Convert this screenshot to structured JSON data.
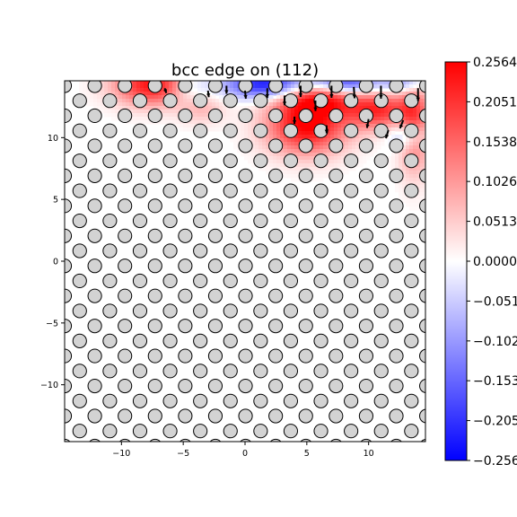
{
  "chart_data": {
    "type": "heatmap",
    "title": "bcc edge on (112)",
    "xlabel": "",
    "ylabel": "",
    "xlim": [
      -14.6,
      14.6
    ],
    "ylim": [
      -14.6,
      14.6
    ],
    "x_ticks": [
      -10,
      -5,
      0,
      5,
      10
    ],
    "y_ticks": [
      -10,
      -5,
      0,
      5,
      10
    ],
    "x_tick_labels": [
      "−10",
      "−5",
      "0",
      "5",
      "10"
    ],
    "y_tick_labels": [
      "−10",
      "−5",
      "0",
      "5",
      "10"
    ],
    "atoms": {
      "row_spacing": 1.215,
      "col_spacing": 2.44,
      "row_offset_shift": 1.22,
      "first_row_y": 14.2,
      "first_col_x": -14.6,
      "marker_color": "#d3d3d3",
      "edge_color": "#000000"
    },
    "field_hotspots": [
      {
        "x": -7.5,
        "y": 14.3,
        "sx": 2.2,
        "sy": 1.2,
        "value": 0.24
      },
      {
        "x": -4.5,
        "y": 14.0,
        "sx": 1.2,
        "sy": 0.9,
        "value": -0.08
      },
      {
        "x": -3.5,
        "y": 12.4,
        "sx": 1.3,
        "sy": 0.9,
        "value": 0.07
      },
      {
        "x": 2.0,
        "y": 14.3,
        "sx": 2.5,
        "sy": 0.8,
        "value": -0.25
      },
      {
        "x": 5.0,
        "y": 10.9,
        "sx": 2.3,
        "sy": 1.6,
        "value": 0.25
      },
      {
        "x": 6.0,
        "y": 13.4,
        "sx": 2.3,
        "sy": 1.1,
        "value": 0.22
      },
      {
        "x": 8.0,
        "y": 14.4,
        "sx": 2.0,
        "sy": 0.7,
        "value": -0.24
      },
      {
        "x": 10.8,
        "y": 12.2,
        "sx": 1.8,
        "sy": 1.1,
        "value": 0.2
      },
      {
        "x": 13.7,
        "y": 11.0,
        "sx": 0.9,
        "sy": 2.6,
        "value": 0.18
      },
      {
        "x": 13.2,
        "y": 10.2,
        "sx": 1.0,
        "sy": 0.8,
        "value": -0.14
      },
      {
        "x": 13.0,
        "y": 14.4,
        "sx": 1.2,
        "sy": 0.6,
        "value": -0.12
      }
    ],
    "quiver": [
      {
        "x": -1.5,
        "y": 14.2,
        "u": 0.0,
        "v": -1.0
      },
      {
        "x": 0.0,
        "y": 13.8,
        "u": 0.1,
        "v": -1.0
      },
      {
        "x": 1.8,
        "y": 14.0,
        "u": 0.0,
        "v": -1.2
      },
      {
        "x": 3.2,
        "y": 13.4,
        "u": 0.0,
        "v": -1.2
      },
      {
        "x": 4.5,
        "y": 14.2,
        "u": 0.0,
        "v": -1.4
      },
      {
        "x": 5.7,
        "y": 13.0,
        "u": 0.0,
        "v": -1.3
      },
      {
        "x": 7.0,
        "y": 14.2,
        "u": 0.0,
        "v": -1.5
      },
      {
        "x": 8.8,
        "y": 14.1,
        "u": 0.1,
        "v": -1.4
      },
      {
        "x": 11.0,
        "y": 14.2,
        "u": 0.0,
        "v": -1.6
      },
      {
        "x": 14.0,
        "y": 14.0,
        "u": 0.0,
        "v": -1.6
      },
      {
        "x": 10.0,
        "y": 11.5,
        "u": -0.2,
        "v": -1.1
      },
      {
        "x": 11.6,
        "y": 10.6,
        "u": -0.3,
        "v": -1.0
      },
      {
        "x": 12.8,
        "y": 11.4,
        "u": -0.4,
        "v": -1.0
      },
      {
        "x": 6.6,
        "y": 11.0,
        "u": 0.0,
        "v": -1.0
      },
      {
        "x": 4.0,
        "y": 11.7,
        "u": 0.0,
        "v": -0.9
      },
      {
        "x": -6.5,
        "y": 14.0,
        "u": 0.2,
        "v": -0.6
      },
      {
        "x": -3.0,
        "y": 13.8,
        "u": 0.1,
        "v": -0.8
      }
    ],
    "colorbar": {
      "min": -0.2564,
      "max": 0.2564,
      "colormap": "bwr",
      "tick_values": [
        0.2564,
        0.2051,
        0.1538,
        0.1026,
        0.0513,
        0.0,
        -0.0513,
        -0.1026,
        -0.1538,
        -0.2051,
        -0.2564
      ],
      "tick_labels": [
        "0.2564",
        "0.2051",
        "0.1538",
        "0.1026",
        "0.0513",
        "0.0000",
        "−0.0513",
        "−0.1026",
        "−0.1538",
        "−0.2051",
        "−0.2564"
      ],
      "colors": {
        "high": "#ff0000",
        "mid": "#ffffff",
        "low": "#0000ff"
      }
    }
  }
}
